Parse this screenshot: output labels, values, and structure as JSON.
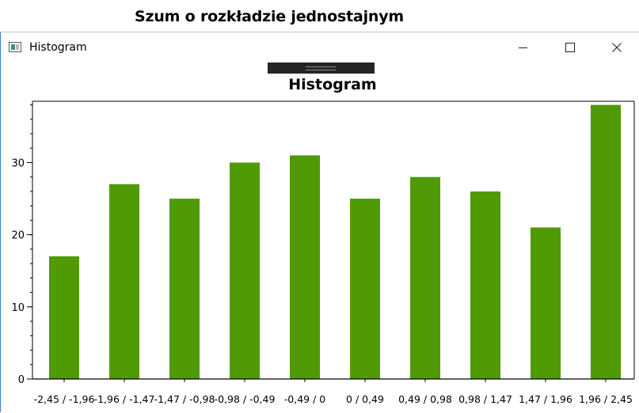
{
  "background_window": {
    "title": "Szum o rozkładzie jednostajnym"
  },
  "window": {
    "title": "Histogram",
    "controls": {
      "minimize": "minimize-icon",
      "maximize": "maximize-icon",
      "close": "close-icon"
    }
  },
  "colors": {
    "bar": "#4f9a05",
    "axis": "#000000"
  },
  "chart_data": {
    "type": "bar",
    "title": "Histogram",
    "categories": [
      "-2,45 / -1,96",
      "-1,96 / -1,47",
      "-1,47 / -0,98",
      "-0,98 / -0,49",
      "-0,49 / 0",
      "0 / 0,49",
      "0,49 / 0,98",
      "0,98 / 1,47",
      "1,47 / 1,96",
      "1,96 / 2,45"
    ],
    "values": [
      17,
      27,
      25,
      30,
      31,
      25,
      28,
      26,
      21,
      38
    ],
    "yticks": [
      "0",
      "10",
      "20",
      "30"
    ],
    "ylim": [
      0,
      38.5
    ],
    "xlabel": "",
    "ylabel": "",
    "legend": "none",
    "grid": false
  }
}
